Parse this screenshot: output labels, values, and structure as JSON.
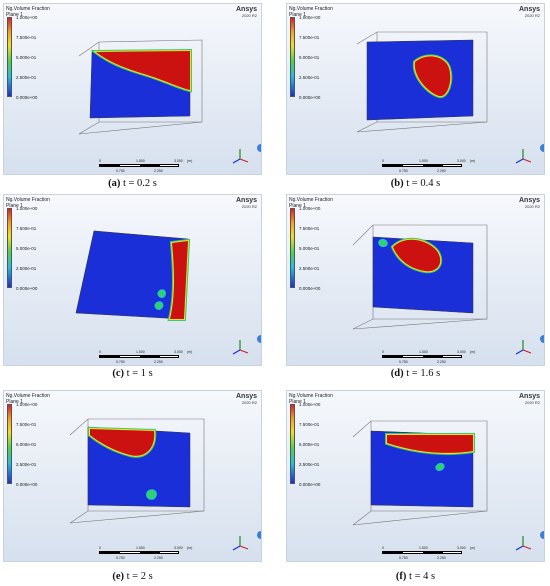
{
  "legend": {
    "title_line1": "Ng.Volume Fraction",
    "title_line2": "Plane 1",
    "ticks": [
      "1.000e+00",
      "7.500e-01",
      "5.000e-01",
      "2.500e-01",
      "0.000e+00"
    ]
  },
  "brand": {
    "name": "Ansys",
    "version": "2020 R2"
  },
  "scale": {
    "t0": "0",
    "t1": "1.500",
    "t2": "3.000",
    "unit": "(m)",
    "b1": "0.750",
    "b2": "2.250"
  },
  "captions": [
    {
      "letter": "(a)",
      "text": " t = 0.2 s"
    },
    {
      "letter": "(b)",
      "text": " t = 0.4 s"
    },
    {
      "letter": "(c)",
      "text": " t = 1 s"
    },
    {
      "letter": "(d)",
      "text": " t = 1.6 s"
    },
    {
      "letter": "(e)",
      "text": " t = 2 s"
    },
    {
      "letter": "(f)",
      "text": " t = 4 s"
    }
  ],
  "colors": {
    "liquid": "#cc1111",
    "gas": "#1a2fd8",
    "interface1": "#f0e020",
    "interface2": "#2fd070"
  }
}
